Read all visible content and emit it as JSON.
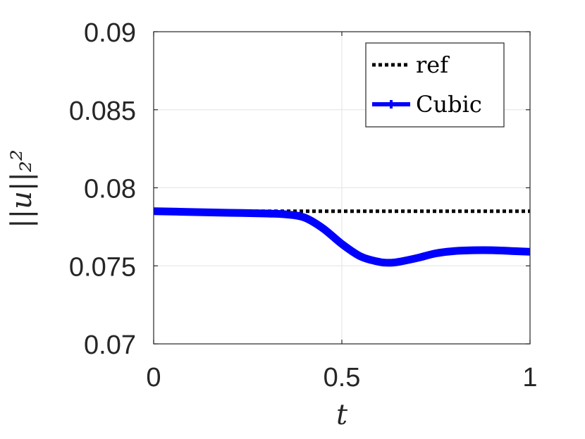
{
  "chart_data": {
    "type": "line",
    "xlabel": "t",
    "ylabel": "||u||₂²",
    "xlim": [
      0,
      1
    ],
    "ylim": [
      0.07,
      0.09
    ],
    "xticks": [
      0,
      0.5,
      1
    ],
    "xtick_labels": [
      "0",
      "0.5",
      "1"
    ],
    "yticks": [
      0.07,
      0.075,
      0.08,
      0.085,
      0.09
    ],
    "ytick_labels": [
      "0.07",
      "0.075",
      "0.08",
      "0.085",
      "0.09"
    ],
    "grid": true,
    "legend_position": "top-right",
    "series": [
      {
        "name": "ref",
        "style": "dotted",
        "color": "#000000",
        "x": [
          0,
          1
        ],
        "y": [
          0.0785,
          0.0785
        ]
      },
      {
        "name": "Cubic",
        "style": "solid",
        "color": "#0000ff",
        "x": [
          0,
          0.1,
          0.2,
          0.3,
          0.35,
          0.4,
          0.45,
          0.5,
          0.55,
          0.6,
          0.63,
          0.65,
          0.7,
          0.75,
          0.8,
          0.85,
          0.9,
          0.95,
          1.0
        ],
        "y": [
          0.0785,
          0.07845,
          0.0784,
          0.07835,
          0.0783,
          0.0781,
          0.0774,
          0.0764,
          0.0756,
          0.07525,
          0.0752,
          0.07525,
          0.0755,
          0.0758,
          0.07595,
          0.076,
          0.076,
          0.07595,
          0.0759
        ]
      }
    ]
  }
}
